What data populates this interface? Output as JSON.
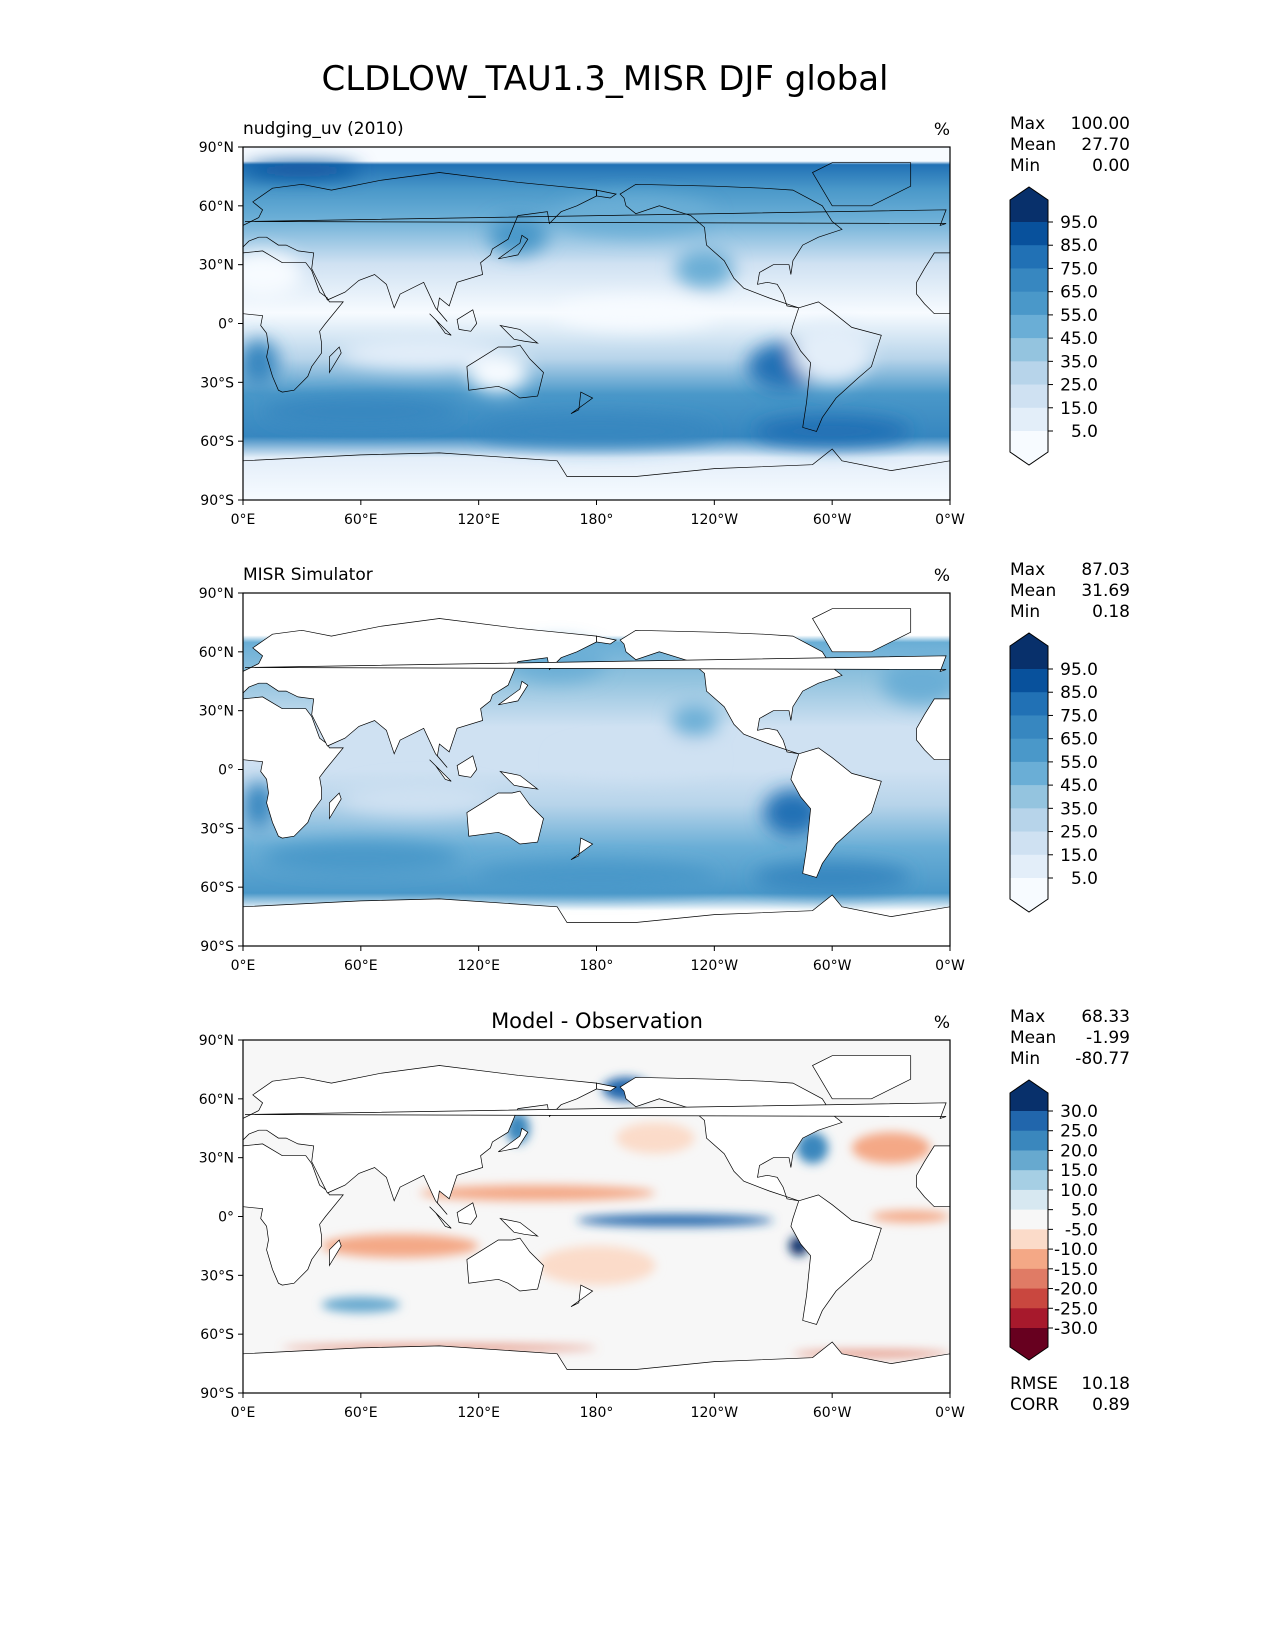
{
  "title": "CLDLOW_TAU1.3_MISR DJF global",
  "lat_ticks": [
    "90°N",
    "60°N",
    "30°N",
    "0°",
    "30°S",
    "60°S",
    "90°S"
  ],
  "lon_ticks": [
    "0°E",
    "60°E",
    "120°E",
    "180°",
    "120°W",
    "60°W",
    "0°W"
  ],
  "panels": [
    {
      "subtitle": "nudging_uv (2010)",
      "subtitle_centered": false,
      "units": "%",
      "stats": [
        {
          "label": "Max",
          "value": "100.00"
        },
        {
          "label": "Mean",
          "value": "27.70"
        },
        {
          "label": "Min",
          "value": "0.00"
        }
      ],
      "colorbar": {
        "labels": [
          "95.0",
          "85.0",
          "75.0",
          "65.0",
          "55.0",
          "45.0",
          "35.0",
          "25.0",
          "15.0",
          "5.0"
        ],
        "colors": [
          "#08306b",
          "#08519c",
          "#2171b5",
          "#3787c0",
          "#4a98c9",
          "#6aaed6",
          "#94c4df",
          "#b7d4ea",
          "#cfe1f2",
          "#e3eef9",
          "#f7fbff"
        ]
      }
    },
    {
      "subtitle": "MISR Simulator",
      "subtitle_centered": false,
      "units": "%",
      "stats": [
        {
          "label": "Max",
          "value": "87.03"
        },
        {
          "label": "Mean",
          "value": "31.69"
        },
        {
          "label": "Min",
          "value": "0.18"
        }
      ],
      "colorbar": {
        "labels": [
          "95.0",
          "85.0",
          "75.0",
          "65.0",
          "55.0",
          "45.0",
          "35.0",
          "25.0",
          "15.0",
          "5.0"
        ],
        "colors": [
          "#08306b",
          "#08519c",
          "#2171b5",
          "#3787c0",
          "#4a98c9",
          "#6aaed6",
          "#94c4df",
          "#b7d4ea",
          "#cfe1f2",
          "#e3eef9",
          "#f7fbff"
        ]
      }
    },
    {
      "subtitle": "Model - Observation",
      "subtitle_centered": true,
      "units": "%",
      "stats": [
        {
          "label": "Max",
          "value": "68.33"
        },
        {
          "label": "Mean",
          "value": "-1.99"
        },
        {
          "label": "Min",
          "value": "-80.77"
        }
      ],
      "colorbar": {
        "labels": [
          "30.0",
          "25.0",
          "20.0",
          "15.0",
          "10.0",
          "5.0",
          "-5.0",
          "-10.0",
          "-15.0",
          "-20.0",
          "-25.0",
          "-30.0"
        ],
        "colors": [
          "#08306b",
          "#2166ac",
          "#3a87bd",
          "#67a9cf",
          "#a6cfe4",
          "#d7e8f1",
          "#f7f7f7",
          "#fbdbc9",
          "#f4a886",
          "#e07b65",
          "#c9473f",
          "#a7192c",
          "#67001f"
        ]
      },
      "extra_stats": [
        {
          "label": "RMSE",
          "value": "10.18"
        },
        {
          "label": "CORR",
          "value": "0.89"
        }
      ]
    }
  ]
}
